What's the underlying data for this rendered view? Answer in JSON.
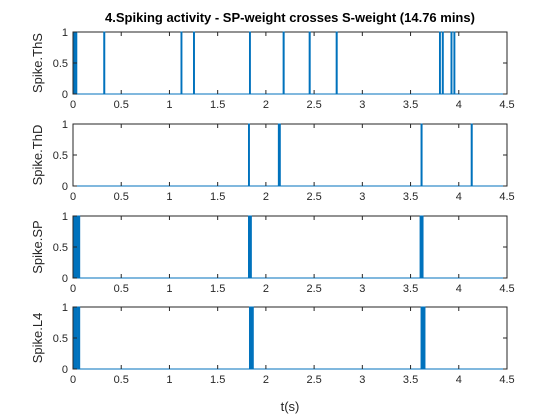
{
  "figure": {
    "title": "4.Spiking activity - SP-weight crosses S-weight (14.76 mins)",
    "xlabel": "t(s)",
    "line_color": "#0072BD"
  },
  "chart_data": [
    {
      "type": "line",
      "ylabel": "Spike.ThS",
      "xlim": [
        0,
        4.5
      ],
      "ylim": [
        0,
        1
      ],
      "xticks": [
        0,
        0.5,
        1,
        1.5,
        2,
        2.5,
        3,
        3.5,
        4,
        4.5
      ],
      "yticks": [
        0,
        0.5,
        1
      ],
      "xtick_labels": [
        "0",
        "0.5",
        "1",
        "1.5",
        "2",
        "2.5",
        "3",
        "3.5",
        "4",
        "4.5"
      ],
      "ytick_labels": [
        "0",
        "0.5",
        "1"
      ],
      "spike_times": [
        0.01,
        0.03,
        0.32,
        1.12,
        1.25,
        1.83,
        2.18,
        2.45,
        2.73,
        3.8,
        3.83,
        3.92,
        3.95
      ]
    },
    {
      "type": "line",
      "ylabel": "Spike.ThD",
      "xlim": [
        0,
        4.5
      ],
      "ylim": [
        0,
        1
      ],
      "xticks": [
        0,
        0.5,
        1,
        1.5,
        2,
        2.5,
        3,
        3.5,
        4,
        4.5
      ],
      "yticks": [
        0,
        0.5,
        1
      ],
      "xtick_labels": [
        "0",
        "0.5",
        "1",
        "1.5",
        "2",
        "2.5",
        "3",
        "3.5",
        "4",
        "4.5"
      ],
      "ytick_labels": [
        "0",
        "0.5",
        "1"
      ],
      "spike_times": [
        1.82,
        2.13,
        2.14,
        3.61,
        4.13
      ]
    },
    {
      "type": "line",
      "ylabel": "Spike.SP",
      "xlim": [
        0,
        4.5
      ],
      "ylim": [
        0,
        1
      ],
      "xticks": [
        0,
        0.5,
        1,
        1.5,
        2,
        2.5,
        3,
        3.5,
        4,
        4.5
      ],
      "yticks": [
        0,
        0.5,
        1
      ],
      "xtick_labels": [
        "0",
        "0.5",
        "1",
        "1.5",
        "2",
        "2.5",
        "3",
        "3.5",
        "4",
        "4.5"
      ],
      "ytick_labels": [
        "0",
        "0.5",
        "1"
      ],
      "spike_times": [
        0.01,
        0.02,
        0.03,
        0.04,
        0.05,
        0.06,
        1.82,
        1.83,
        1.84,
        3.6,
        3.61,
        3.62
      ]
    },
    {
      "type": "line",
      "ylabel": "Spike.L4",
      "xlim": [
        0,
        4.5
      ],
      "ylim": [
        0,
        1
      ],
      "xticks": [
        0,
        0.5,
        1,
        1.5,
        2,
        2.5,
        3,
        3.5,
        4,
        4.5
      ],
      "yticks": [
        0,
        0.5,
        1
      ],
      "xtick_labels": [
        "0",
        "0.5",
        "1",
        "1.5",
        "2",
        "2.5",
        "3",
        "3.5",
        "4",
        "4.5"
      ],
      "ytick_labels": [
        "0",
        "0.5",
        "1"
      ],
      "spike_times": [
        0.01,
        0.02,
        0.03,
        0.05,
        0.06,
        1.83,
        1.84,
        1.85,
        1.86,
        3.61,
        3.62,
        3.63,
        3.64
      ]
    }
  ]
}
